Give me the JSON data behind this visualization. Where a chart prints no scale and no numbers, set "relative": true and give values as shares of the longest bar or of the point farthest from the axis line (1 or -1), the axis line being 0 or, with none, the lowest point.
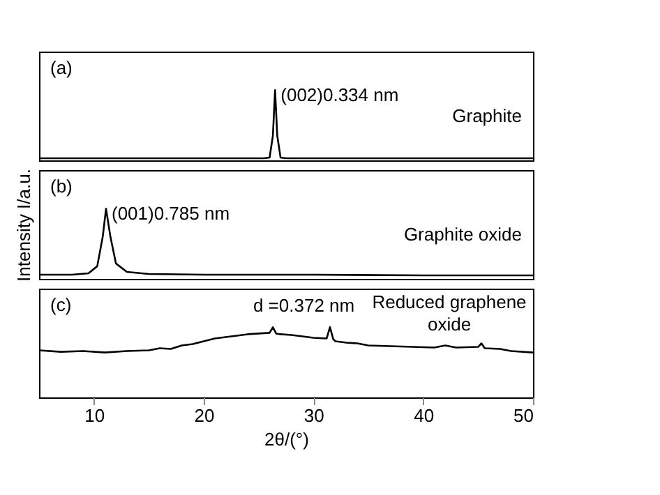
{
  "chart_data": [
    {
      "type": "line",
      "relative": true,
      "xlim": [
        5,
        50
      ],
      "tick_labels": false,
      "series": [
        {
          "color": "#000000",
          "x": [
            5,
            12,
            20,
            25.5,
            26.0,
            26.3,
            26.5,
            26.7,
            27.0,
            27.5,
            35,
            42,
            50
          ],
          "values": [
            0.03,
            0.03,
            0.03,
            0.03,
            0.04,
            0.35,
            1,
            0.35,
            0.04,
            0.03,
            0.03,
            0.03,
            0.03
          ]
        }
      ],
      "annotations": [
        "(a)",
        {
          "text": "(002)0.334 nm",
          "x": 26.5,
          "y": 1
        },
        "Graphite"
      ]
    },
    {
      "type": "line",
      "relative": true,
      "xlim": [
        5,
        50
      ],
      "tick_labels": false,
      "ylabel": "Intensity   I/a.u.",
      "series": [
        {
          "color": "#000000",
          "x": [
            5,
            8,
            9.5,
            10.3,
            10.8,
            11.1,
            11.5,
            12.0,
            13.0,
            15,
            20,
            30,
            40,
            50
          ],
          "values": [
            0.06,
            0.06,
            0.08,
            0.18,
            0.6,
            1,
            0.6,
            0.22,
            0.1,
            0.07,
            0.06,
            0.06,
            0.05,
            0.05
          ]
        }
      ],
      "annotations": [
        "(b)",
        {
          "text": "(001)0.785 nm",
          "x": 11.1,
          "y": 1
        },
        "Graphite oxide"
      ]
    },
    {
      "type": "line",
      "relative": true,
      "xlim": [
        5,
        50
      ],
      "xticks": [
        10,
        20,
        30,
        40,
        50
      ],
      "tick_labels": "x",
      "xlabel": "2θ/(°)",
      "series": [
        {
          "color": "#000000",
          "x": [
            5,
            7,
            9,
            11,
            13,
            15,
            16,
            17,
            18,
            19,
            20,
            21,
            22,
            23,
            24,
            25,
            26.0,
            26.3,
            26.6,
            27,
            28,
            29,
            30,
            31.2,
            31.5,
            31.8,
            32,
            33,
            34,
            35,
            37,
            39,
            41,
            42,
            43,
            45,
            45.3,
            45.6,
            47,
            48,
            50
          ],
          "values": [
            0.67,
            0.65,
            0.66,
            0.64,
            0.66,
            0.67,
            0.7,
            0.69,
            0.74,
            0.76,
            0.8,
            0.84,
            0.86,
            0.88,
            0.9,
            0.91,
            0.92,
            1.0,
            0.91,
            0.9,
            0.89,
            0.87,
            0.85,
            0.84,
            1.0,
            0.83,
            0.8,
            0.78,
            0.77,
            0.74,
            0.73,
            0.72,
            0.71,
            0.74,
            0.71,
            0.72,
            0.77,
            0.7,
            0.69,
            0.66,
            0.64
          ]
        }
      ],
      "annotations": [
        "(c)",
        {
          "text": "d =0.372 nm",
          "x": 24,
          "y": 0.9
        },
        "Reduced graphene oxide"
      ]
    }
  ]
}
